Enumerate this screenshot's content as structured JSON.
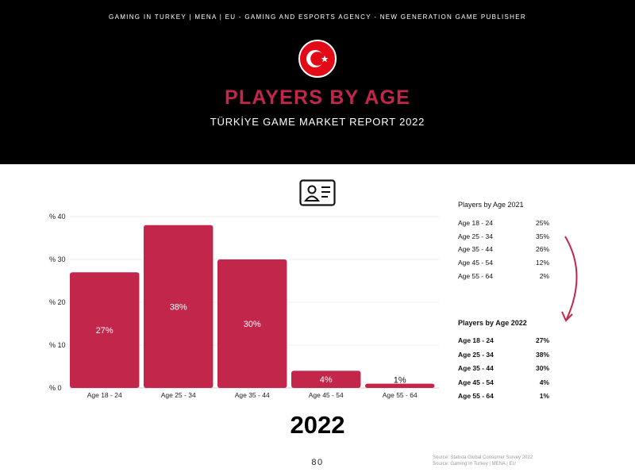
{
  "header": {
    "tagline": "GAMING IN TURKEY | MENA | EU - GAMING AND ESPORTS AGENCY - NEW GENERATION GAME PUBLISHER",
    "title": "PLAYERS BY AGE",
    "subtitle": "TÜRKİYE GAME MARKET REPORT 2022",
    "flag_icon": "turkey-flag-icon"
  },
  "colors": {
    "accent": "#c3264b",
    "header_bg": "#000000"
  },
  "chart_data": {
    "type": "bar",
    "categories": [
      "Age 18 - 24",
      "Age 25 - 34",
      "Age 35 - 44",
      "Age 45 - 54",
      "Age 55 - 64"
    ],
    "values": [
      27,
      38,
      30,
      4,
      1
    ],
    "data_labels": [
      "27%",
      "38%",
      "30%",
      "4%",
      "1%"
    ],
    "yticks": [
      "% 0",
      "% 10",
      "% 20",
      "% 30",
      "% 40"
    ],
    "ytick_values": [
      0,
      10,
      20,
      30,
      40
    ],
    "ylim": [
      0,
      40
    ],
    "grid": true,
    "legend": "none"
  },
  "year_label": "2022",
  "legend_2021": {
    "title": "Players by Age 2021",
    "rows": [
      {
        "label": "Age 18 - 24",
        "value": "25%"
      },
      {
        "label": "Age 25 - 34",
        "value": "35%"
      },
      {
        "label": "Age 35 - 44",
        "value": "26%"
      },
      {
        "label": "Age 45 - 54",
        "value": "12%"
      },
      {
        "label": "Age 55 - 64",
        "value": "2%"
      }
    ]
  },
  "legend_2022": {
    "title": "Players by Age 2022",
    "rows": [
      {
        "label": "Age 18 - 24",
        "value": "27%"
      },
      {
        "label": "Age 25 - 34",
        "value": "38%"
      },
      {
        "label": "Age 35 - 44",
        "value": "30%"
      },
      {
        "label": "Age 45 - 54",
        "value": "4%"
      },
      {
        "label": "Age 55 - 64",
        "value": "1%"
      }
    ]
  },
  "footer": {
    "page_number": "80",
    "source_line1": "Source: Statista Global Consumer Survey 2022",
    "source_line2": "Source: Gaming In Turkey | MENA | EU"
  }
}
